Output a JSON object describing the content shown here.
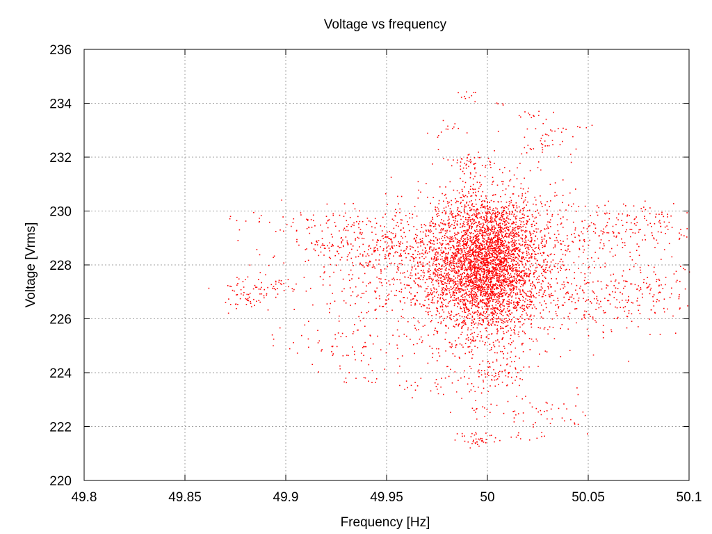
{
  "chart_data": {
    "type": "scatter",
    "title": "Voltage vs frequency",
    "xlabel": "Frequency [Hz]",
    "ylabel": "Voltage [Vrms]",
    "xlim": [
      49.8,
      50.1
    ],
    "ylim": [
      220,
      236
    ],
    "xticks": [
      "49.8",
      "49.85",
      "49.9",
      "49.95",
      "50",
      "50.05",
      "50.1"
    ],
    "xtick_values": [
      49.8,
      49.85,
      49.9,
      49.95,
      50.0,
      50.05,
      50.1
    ],
    "yticks": [
      "220",
      "222",
      "224",
      "226",
      "228",
      "230",
      "232",
      "234",
      "236"
    ],
    "ytick_values": [
      220,
      222,
      224,
      226,
      228,
      230,
      232,
      234,
      236
    ],
    "grid": true,
    "point_color": "#ff0000",
    "clusters": [
      {
        "x": 50.0,
        "y": 228.0,
        "sx": 0.012,
        "sy": 1.3,
        "n": 2600
      },
      {
        "x": 49.995,
        "y": 227.8,
        "sx": 0.022,
        "sy": 1.5,
        "n": 1200
      },
      {
        "x": 50.01,
        "y": 228.5,
        "sx": 0.03,
        "sy": 1.0,
        "n": 500
      },
      {
        "x": 49.96,
        "y": 228.0,
        "sx": 0.025,
        "sy": 1.2,
        "n": 500
      },
      {
        "x": 49.94,
        "y": 228.8,
        "sx": 0.02,
        "sy": 0.4,
        "n": 120
      },
      {
        "x": 49.92,
        "y": 229.5,
        "sx": 0.02,
        "sy": 0.3,
        "n": 60
      },
      {
        "x": 49.89,
        "y": 227.2,
        "sx": 0.01,
        "sy": 0.2,
        "n": 50
      },
      {
        "x": 49.88,
        "y": 226.8,
        "sx": 0.006,
        "sy": 0.3,
        "n": 40
      },
      {
        "x": 49.93,
        "y": 225.0,
        "sx": 0.015,
        "sy": 0.5,
        "n": 60
      },
      {
        "x": 49.935,
        "y": 223.7,
        "sx": 0.005,
        "sy": 0.1,
        "n": 10
      },
      {
        "x": 50.06,
        "y": 229.5,
        "sx": 0.02,
        "sy": 0.5,
        "n": 120
      },
      {
        "x": 50.08,
        "y": 229.6,
        "sx": 0.01,
        "sy": 0.3,
        "n": 50
      },
      {
        "x": 50.08,
        "y": 227.2,
        "sx": 0.015,
        "sy": 0.5,
        "n": 120
      },
      {
        "x": 50.05,
        "y": 226.5,
        "sx": 0.02,
        "sy": 0.6,
        "n": 150
      },
      {
        "x": 50.03,
        "y": 232.5,
        "sx": 0.01,
        "sy": 0.4,
        "n": 40
      },
      {
        "x": 50.02,
        "y": 233.6,
        "sx": 0.006,
        "sy": 0.1,
        "n": 12
      },
      {
        "x": 50.035,
        "y": 233.0,
        "sx": 0.005,
        "sy": 0.1,
        "n": 8
      },
      {
        "x": 49.99,
        "y": 234.3,
        "sx": 0.003,
        "sy": 0.1,
        "n": 10
      },
      {
        "x": 49.99,
        "y": 231.8,
        "sx": 0.006,
        "sy": 0.2,
        "n": 40
      },
      {
        "x": 49.985,
        "y": 233.2,
        "sx": 0.004,
        "sy": 0.15,
        "n": 8
      },
      {
        "x": 49.975,
        "y": 232.9,
        "sx": 0.003,
        "sy": 0.1,
        "n": 5
      },
      {
        "x": 49.995,
        "y": 221.5,
        "sx": 0.006,
        "sy": 0.15,
        "n": 40
      },
      {
        "x": 50.0,
        "y": 223.9,
        "sx": 0.01,
        "sy": 0.3,
        "n": 80
      },
      {
        "x": 50.03,
        "y": 222.5,
        "sx": 0.01,
        "sy": 0.4,
        "n": 40
      },
      {
        "x": 49.995,
        "y": 222.5,
        "sx": 0.004,
        "sy": 0.2,
        "n": 12
      },
      {
        "x": 49.97,
        "y": 223.5,
        "sx": 0.01,
        "sy": 0.2,
        "n": 20
      },
      {
        "x": 50.02,
        "y": 221.8,
        "sx": 0.006,
        "sy": 0.2,
        "n": 12
      },
      {
        "x": 50.005,
        "y": 234.0,
        "sx": 0.002,
        "sy": 0.1,
        "n": 4
      }
    ]
  }
}
